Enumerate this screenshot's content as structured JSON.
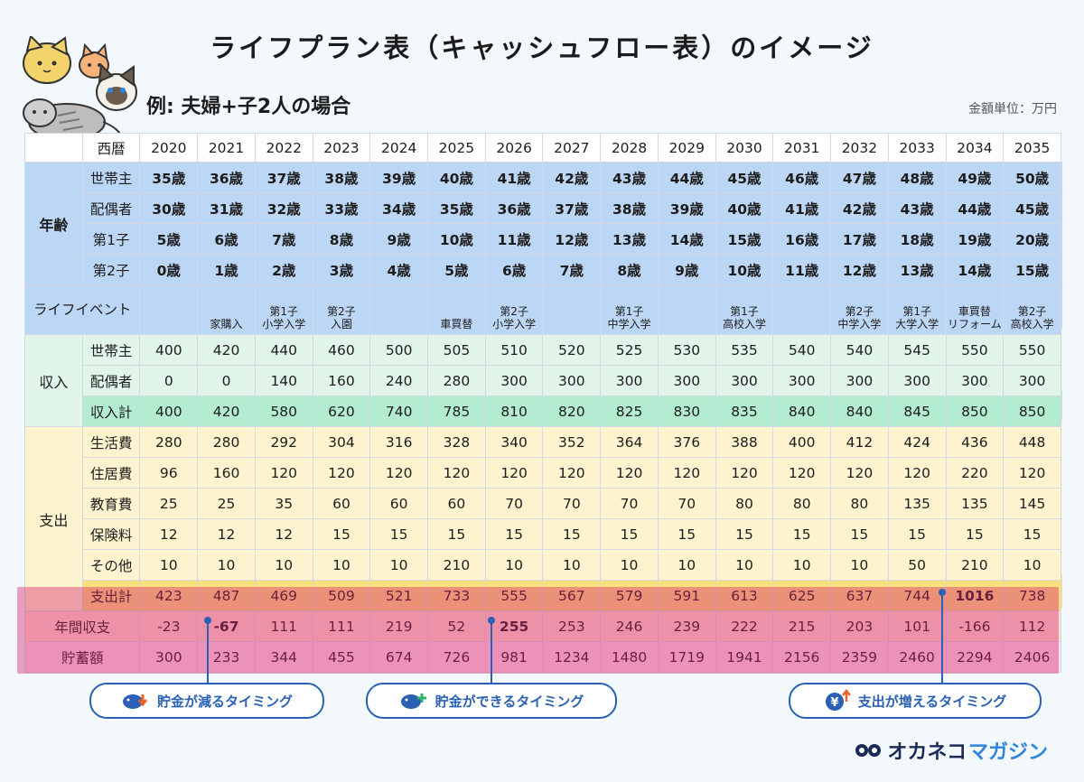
{
  "title": "ライフプラン表（キャッシュフロー表）のイメージ",
  "subtitle": "例: 夫婦+子2人の場合",
  "unit": "金額単位：万円",
  "header_label": "西暦",
  "years": [
    "2020",
    "2021",
    "2022",
    "2023",
    "2024",
    "2025",
    "2026",
    "2027",
    "2028",
    "2029",
    "2030",
    "2031",
    "2032",
    "2033",
    "2034",
    "2035"
  ],
  "age_group": "年齢",
  "age_rows": [
    {
      "label": "世帯主",
      "values": [
        "35歳",
        "36歳",
        "37歳",
        "38歳",
        "39歳",
        "40歳",
        "41歳",
        "42歳",
        "43歳",
        "44歳",
        "45歳",
        "46歳",
        "47歳",
        "48歳",
        "49歳",
        "50歳"
      ]
    },
    {
      "label": "配偶者",
      "values": [
        "30歳",
        "31歳",
        "32歳",
        "33歳",
        "34歳",
        "35歳",
        "36歳",
        "37歳",
        "38歳",
        "39歳",
        "40歳",
        "41歳",
        "42歳",
        "43歳",
        "44歳",
        "45歳"
      ]
    },
    {
      "label": "第1子",
      "values": [
        "5歳",
        "6歳",
        "7歳",
        "8歳",
        "9歳",
        "10歳",
        "11歳",
        "12歳",
        "13歳",
        "14歳",
        "15歳",
        "16歳",
        "17歳",
        "18歳",
        "19歳",
        "20歳"
      ]
    },
    {
      "label": "第2子",
      "values": [
        "0歳",
        "1歳",
        "2歳",
        "3歳",
        "4歳",
        "5歳",
        "6歳",
        "7歳",
        "8歳",
        "9歳",
        "10歳",
        "11歳",
        "12歳",
        "13歳",
        "14歳",
        "15歳"
      ]
    }
  ],
  "life_event": {
    "label": "ライフイベント",
    "values": [
      [],
      [
        "家購入"
      ],
      [
        "第1子",
        "小学入学"
      ],
      [
        "第2子",
        "入園"
      ],
      [],
      [
        "車買替"
      ],
      [
        "第2子",
        "小学入学"
      ],
      [],
      [
        "第1子",
        "中学入学"
      ],
      [],
      [
        "第1子",
        "高校入学"
      ],
      [],
      [
        "第2子",
        "中学入学"
      ],
      [
        "第1子",
        "大学入学"
      ],
      [
        "車買替",
        "リフォーム"
      ],
      [
        "第2子",
        "高校入学"
      ]
    ]
  },
  "income_group": "収入",
  "income_rows": [
    {
      "label": "世帯主",
      "values": [
        "400",
        "420",
        "440",
        "460",
        "500",
        "505",
        "510",
        "520",
        "525",
        "530",
        "535",
        "540",
        "540",
        "545",
        "550",
        "550"
      ]
    },
    {
      "label": "配偶者",
      "values": [
        "0",
        "0",
        "140",
        "160",
        "240",
        "280",
        "300",
        "300",
        "300",
        "300",
        "300",
        "300",
        "300",
        "300",
        "300",
        "300"
      ]
    }
  ],
  "income_total": {
    "label": "収入計",
    "values": [
      "400",
      "420",
      "580",
      "620",
      "740",
      "785",
      "810",
      "820",
      "825",
      "830",
      "835",
      "840",
      "840",
      "845",
      "850",
      "850"
    ]
  },
  "expense_group": "支出",
  "expense_rows": [
    {
      "label": "生活費",
      "values": [
        "280",
        "280",
        "292",
        "304",
        "316",
        "328",
        "340",
        "352",
        "364",
        "376",
        "388",
        "400",
        "412",
        "424",
        "436",
        "448"
      ]
    },
    {
      "label": "住居費",
      "values": [
        "96",
        "160",
        "120",
        "120",
        "120",
        "120",
        "120",
        "120",
        "120",
        "120",
        "120",
        "120",
        "120",
        "120",
        "220",
        "120"
      ]
    },
    {
      "label": "教育費",
      "values": [
        "25",
        "25",
        "35",
        "60",
        "60",
        "60",
        "70",
        "70",
        "70",
        "70",
        "80",
        "80",
        "80",
        "135",
        "135",
        "145"
      ]
    },
    {
      "label": "保険料",
      "values": [
        "12",
        "12",
        "12",
        "15",
        "15",
        "15",
        "15",
        "15",
        "15",
        "15",
        "15",
        "15",
        "15",
        "15",
        "15",
        "15"
      ]
    },
    {
      "label": "その他",
      "values": [
        "10",
        "10",
        "10",
        "10",
        "10",
        "210",
        "10",
        "10",
        "10",
        "10",
        "10",
        "10",
        "10",
        "50",
        "210",
        "10"
      ]
    }
  ],
  "expense_total": {
    "label": "支出計",
    "values": [
      "423",
      "487",
      "469",
      "509",
      "521",
      "733",
      "555",
      "567",
      "579",
      "591",
      "613",
      "625",
      "637",
      "744",
      "1016",
      "738"
    ]
  },
  "balance": {
    "label": "年間収支",
    "values": [
      "-23",
      "-67",
      "111",
      "111",
      "219",
      "52",
      "255",
      "253",
      "246",
      "239",
      "222",
      "215",
      "203",
      "101",
      "-166",
      "112"
    ]
  },
  "savings": {
    "label": "貯蓄額",
    "values": [
      "300",
      "233",
      "344",
      "455",
      "674",
      "726",
      "981",
      "1234",
      "1480",
      "1719",
      "1941",
      "2156",
      "2359",
      "2460",
      "2294",
      "2406"
    ]
  },
  "callouts": {
    "decrease": "貯金が減るタイミング",
    "increase": "貯金ができるタイミング",
    "expense_up": "支出が増えるタイミング"
  },
  "brand": {
    "part1": "オカネコ",
    "part2": "マガジン"
  },
  "colors": {
    "accent_blue": "#2a61b5",
    "highlight_pink": "#d6236e"
  }
}
